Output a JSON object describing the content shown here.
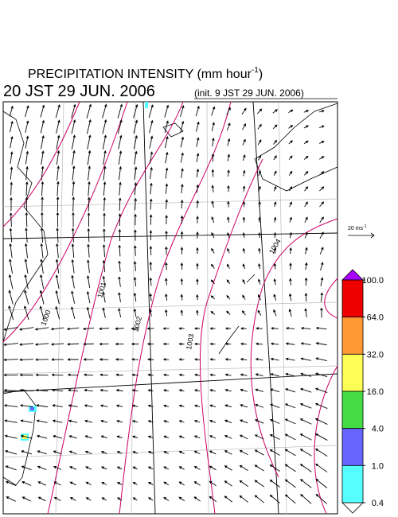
{
  "header": {
    "title": "PRECIPITATION INTENSITY (mm hour",
    "title_exponent": "-1",
    "title_close": ")",
    "valid_time": "20 JST 29 JUN. 2006",
    "init_time": "(init. 9 JST 29 JUN. 2006)"
  },
  "reference_vector": {
    "label": "20 ms",
    "exponent": "-1"
  },
  "colorbar": {
    "levels": [
      {
        "value": 100,
        "label": "100.0"
      },
      {
        "value": 64,
        "label": "64.0"
      },
      {
        "value": 32,
        "label": "32.0"
      },
      {
        "value": 16,
        "label": "16.0"
      },
      {
        "value": 4,
        "label": "4.0"
      },
      {
        "value": 1,
        "label": "1.0"
      },
      {
        "value": 0.4,
        "label": "0.4"
      }
    ],
    "colors": [
      "#ee0000",
      "#ff9933",
      "#ffff55",
      "#44dd44",
      "#6666ff",
      "#55ffff"
    ],
    "over_color": "#aa00ff",
    "under_color": "#ffffff"
  },
  "contours": [
    {
      "label": "1000"
    },
    {
      "label": "1001"
    },
    {
      "label": "1002"
    },
    {
      "label": "1003"
    },
    {
      "label": "1004"
    }
  ]
}
